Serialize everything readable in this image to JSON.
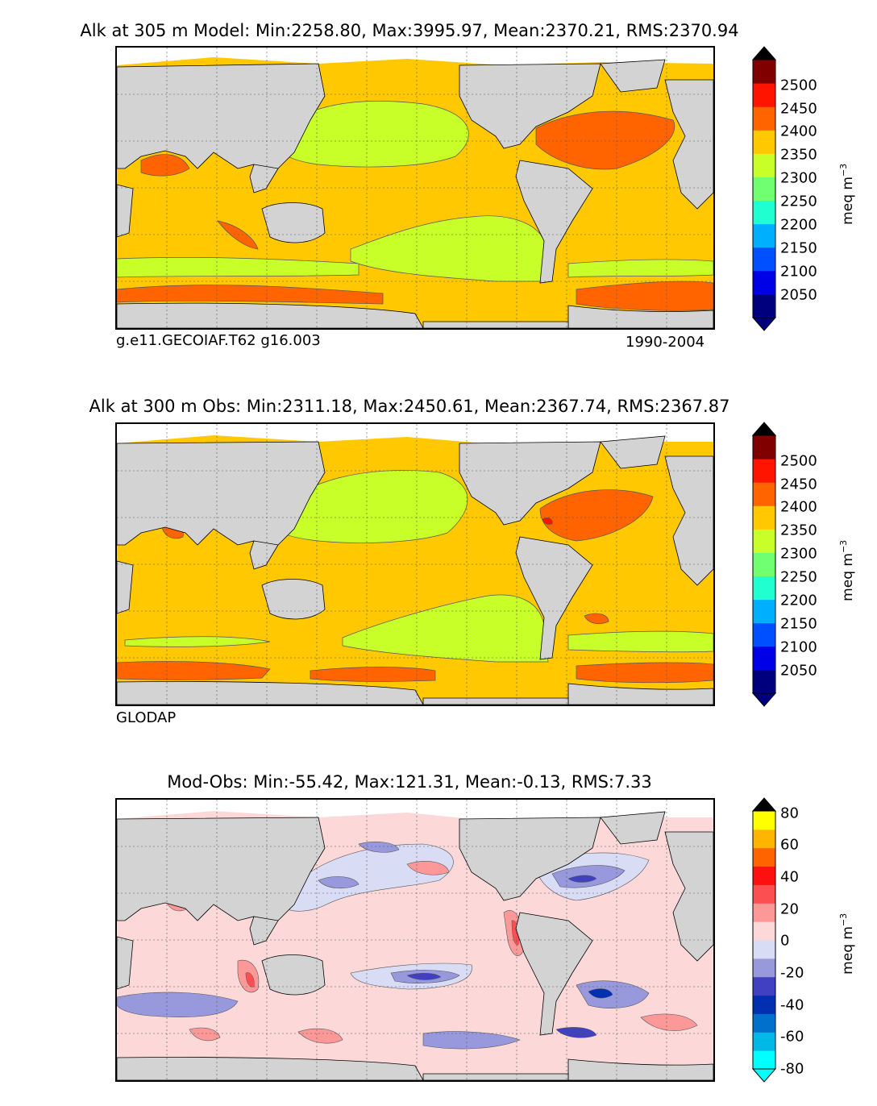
{
  "panels": [
    {
      "title": "Alk at 305 m Model: Min:2258.80, Max:3995.97, Mean:2370.21, RMS:2370.94",
      "caption_left": "g.e11.GECOIAF.T62 g16.003",
      "caption_right": "1990-2004",
      "colorbar": {
        "ticks": [
          "2500",
          "2450",
          "2400",
          "2350",
          "2300",
          "2250",
          "2200",
          "2150",
          "2100",
          "2050"
        ],
        "unit_base": "meq m",
        "unit_exp": "−3",
        "colors": [
          "#00007f",
          "#0000e6",
          "#0050ff",
          "#00b0ff",
          "#20ffd0",
          "#70ff70",
          "#c8ff28",
          "#ffc800",
          "#ff6400",
          "#ff1400",
          "#800000"
        ]
      }
    },
    {
      "title": "Alk at 300 m Obs: Min:2311.18, Max:2450.61, Mean:2367.74, RMS:2367.87",
      "caption_left": "GLODAP",
      "caption_right": "",
      "colorbar": {
        "ticks": [
          "2500",
          "2450",
          "2400",
          "2350",
          "2300",
          "2250",
          "2200",
          "2150",
          "2100",
          "2050"
        ],
        "unit_base": "meq m",
        "unit_exp": "−3",
        "colors": [
          "#00007f",
          "#0000e6",
          "#0050ff",
          "#00b0ff",
          "#20ffd0",
          "#70ff70",
          "#c8ff28",
          "#ffc800",
          "#ff6400",
          "#ff1400",
          "#800000"
        ]
      }
    },
    {
      "title": "Mod-Obs: Min:-55.42, Max:121.31, Mean:-0.13, RMS:7.33",
      "caption_left": "",
      "caption_right": "",
      "colorbar": {
        "ticks": [
          "80",
          "60",
          "40",
          "20",
          "0",
          "-20",
          "-40",
          "-60",
          "-80"
        ],
        "unit_base": "meq m",
        "unit_exp": "−3",
        "colors": [
          "#00ffff",
          "#00b8e6",
          "#0070cc",
          "#0030b0",
          "#4040c0",
          "#9898dc",
          "#d8dcf4",
          "#fcd8d8",
          "#fc9898",
          "#fc5050",
          "#ff1010",
          "#ff6400",
          "#ffb400",
          "#ffff00"
        ]
      }
    }
  ],
  "colors": {
    "land": "#d3d3d3",
    "ocean_low": "#c8ff28",
    "ocean_mid": "#ffc800",
    "ocean_high": "#ff6400",
    "ocean_max": "#ff1400",
    "diff_zero_neg": "#d8dcf4",
    "diff_zero_pos": "#fcd8d8",
    "diff_neg": "#9898dc",
    "diff_pos": "#fc9898",
    "ice": "#ffffff"
  }
}
